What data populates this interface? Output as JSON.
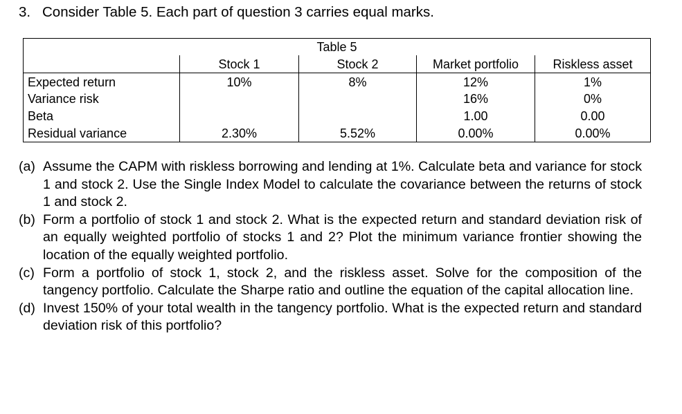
{
  "question": {
    "number": "3.",
    "text": "Consider Table 5. Each part of question 3 carries equal marks."
  },
  "table": {
    "caption": "Table 5",
    "columns": [
      "Stock 1",
      "Stock 2",
      "Market portfolio",
      "Riskless asset"
    ],
    "rows": [
      {
        "label": "Expected return",
        "cells": [
          "10%",
          "8%",
          "12%",
          "1%"
        ]
      },
      {
        "label": "Variance risk",
        "cells": [
          "",
          "",
          "16%",
          "0%"
        ]
      },
      {
        "label": "Beta",
        "cells": [
          "",
          "",
          "1.00",
          "0.00"
        ]
      },
      {
        "label": "Residual variance",
        "cells": [
          "2.30%",
          "5.52%",
          "0.00%",
          "0.00%"
        ]
      }
    ]
  },
  "parts": [
    {
      "marker": "(a)",
      "text": "Assume the CAPM with riskless borrowing and lending at 1%. Calculate beta and variance for stock 1 and stock 2. Use the Single Index Model to calculate the covariance between the returns of stock 1 and stock 2."
    },
    {
      "marker": "(b)",
      "text": "Form a portfolio of stock 1 and stock 2. What is the expected return and standard deviation risk of an equally weighted portfolio of stocks 1 and 2? Plot the minimum variance frontier showing the location of the equally weighted portfolio."
    },
    {
      "marker": "(c)",
      "text": "Form a portfolio of stock 1, stock 2, and the riskless asset. Solve for the composition of the tangency portfolio. Calculate the Sharpe ratio and outline the equation of the capital allocation line."
    },
    {
      "marker": "(d)",
      "text": "Invest 150% of your total wealth in the tangency portfolio. What is the expected return and standard deviation risk of this portfolio?"
    }
  ]
}
